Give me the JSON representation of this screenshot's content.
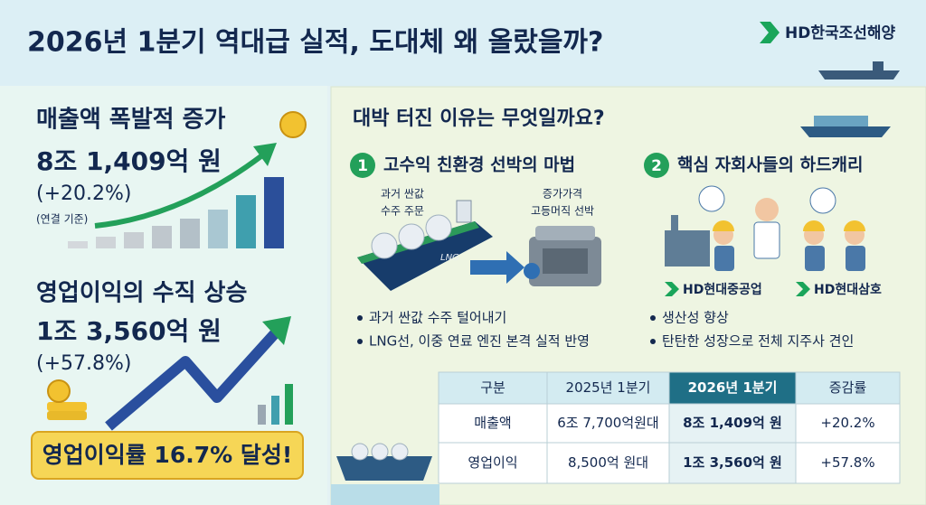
{
  "header": {
    "title": "2026년 1분기 역대급 실적, 도대체 왜 올랐을까?",
    "logo": "HD한국조선해양"
  },
  "left": {
    "revenue": {
      "heading": "매출액 폭발적 증가",
      "amount": "8조 1,409억 원",
      "change": "(+20.2%)",
      "note": "(연결 기준)"
    },
    "profit": {
      "heading": "영업이익의 수직 상승",
      "amount": "1조 3,560억 원",
      "change": "(+57.8%)"
    },
    "margin_banner": "영업이익률 16.7% 달성!"
  },
  "right": {
    "question": "대박 터진 이유는 무엇일까요?",
    "reasons": [
      {
        "number": "1",
        "title": "고수익 친환경 선박의 마법",
        "labels": [
          "과거 싼값",
          "수주 주문",
          "증가가격",
          "고등머직 선박"
        ],
        "ship_label": "LNG",
        "bullets": [
          "과거 싼값 수주 털어내기",
          "LNG선, 이중 연료 엔진 본격 실적 반영"
        ]
      },
      {
        "number": "2",
        "title": "핵심 자회사들의 하드캐리",
        "subsidiaries": [
          "HD현대중공업",
          "HD현대삼호"
        ],
        "bullets": [
          "생산성 향상",
          "탄탄한 성장으로 전체 지주사 견인"
        ]
      }
    ]
  },
  "table": {
    "headers": [
      "구분",
      "2025년 1분기",
      "2026년 1분기",
      "증감률"
    ],
    "rows": [
      [
        "매출액",
        "6조 7,700억원대",
        "8조 1,409억 원",
        "+20.2%"
      ],
      [
        "영업이익",
        "8,500억 원대",
        "1조 3,560억 원",
        "+57.8%"
      ]
    ]
  }
}
